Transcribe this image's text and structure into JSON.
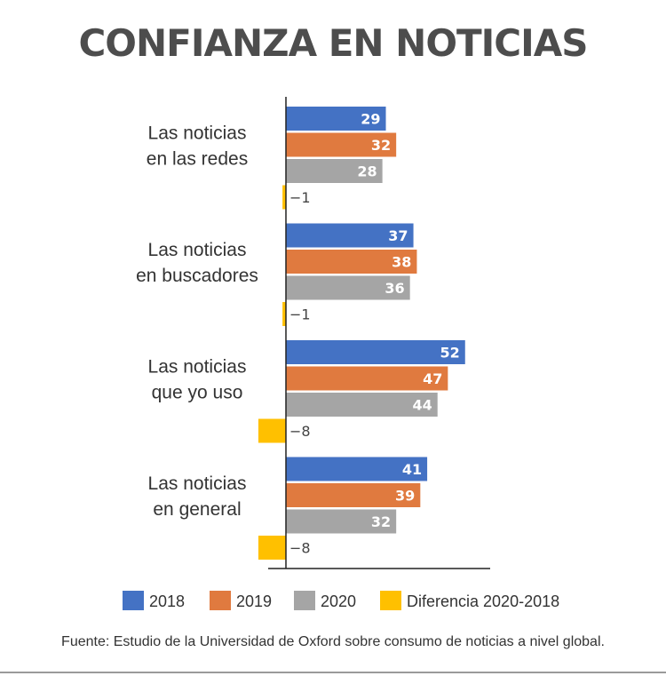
{
  "chart_data": {
    "type": "bar",
    "orientation": "horizontal",
    "title": "CONFIANZA EN NOTICIAS",
    "categories": [
      [
        "Las noticias",
        "en las redes"
      ],
      [
        "Las noticias",
        "en buscadores"
      ],
      [
        "Las noticias",
        "que yo uso"
      ],
      [
        "Las noticias",
        "en general"
      ]
    ],
    "series": [
      {
        "name": "2018",
        "color": "#4472c4",
        "values": [
          29,
          37,
          52,
          41
        ]
      },
      {
        "name": "2019",
        "color": "#e07a3f",
        "values": [
          32,
          38,
          47,
          39
        ]
      },
      {
        "name": "2020",
        "color": "#a5a5a5",
        "values": [
          28,
          36,
          44,
          32
        ]
      },
      {
        "name": "Diferencia 2020-2018",
        "color": "#ffc000",
        "values": [
          -1,
          -1,
          -8,
          -8
        ]
      }
    ],
    "value_labels": [
      [
        "29",
        "32",
        "28",
        "−1"
      ],
      [
        "37",
        "38",
        "36",
        "−1"
      ],
      [
        "52",
        "47",
        "44",
        "−8"
      ],
      [
        "41",
        "39",
        "32",
        "−8"
      ]
    ],
    "xlim": [
      -8,
      56
    ],
    "grid": false,
    "legend_position": "bottom"
  },
  "source": "Fuente: Estudio de la Universidad de Oxford sobre consumo de noticias a nivel global."
}
